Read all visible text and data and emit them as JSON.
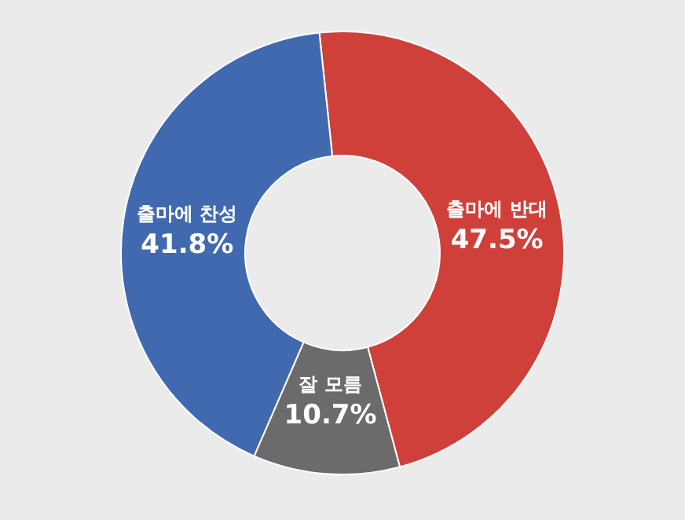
{
  "chart_data": {
    "type": "donut",
    "categories": [
      "출마에 반대",
      "잘 모름",
      "출마에 찬성"
    ],
    "values": [
      47.5,
      10.7,
      41.8
    ],
    "value_labels": [
      "47.5%",
      "10.7%",
      "41.8%"
    ],
    "colors": [
      "#d0403a",
      "#6b6b6b",
      "#4169b0"
    ]
  }
}
